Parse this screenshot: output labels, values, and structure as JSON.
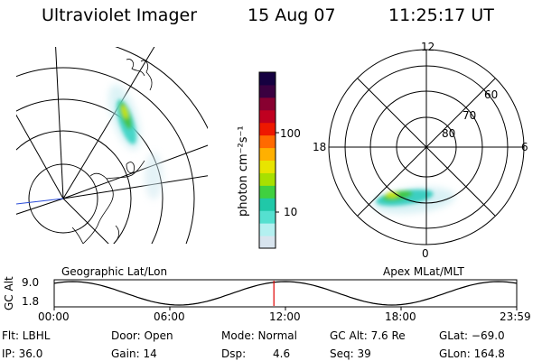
{
  "header": {
    "instrument": "Ultraviolet Imager",
    "date": "15 Aug 07",
    "time": "11:25:17 UT"
  },
  "left_panel": {
    "caption": "Geographic Lat/Lon"
  },
  "right_panel": {
    "caption": "Apex MLat/MLT",
    "mlt_labels": [
      "12",
      "18",
      "6",
      "0"
    ],
    "lat_labels": [
      "60",
      "70",
      "80"
    ]
  },
  "colorbar": {
    "unit_label": "photon cm⁻²s⁻¹",
    "ticks": [
      "100",
      "10"
    ],
    "colors": [
      "#d8e4ee",
      "#b4f0f0",
      "#55e0d0",
      "#20c8a8",
      "#40d040",
      "#a8e000",
      "#e8e400",
      "#ffb000",
      "#ff6a00",
      "#ee1800",
      "#c00020",
      "#880030",
      "#3a0040",
      "#150040"
    ]
  },
  "timeline": {
    "axis_label": "GC Alt",
    "y_ticks": [
      "9.0",
      "1.8"
    ],
    "x_ticks": [
      "00:00",
      "06:00",
      "12:00",
      "18:00",
      "23:59"
    ],
    "current_time_fraction": 0.475,
    "marker_color": "#e00000"
  },
  "info": {
    "filter": "Flt: LBHL",
    "ip": "IP: 36.0",
    "door": "Door: Open",
    "gain": "Gain: 14",
    "mode": "Mode: Normal",
    "dsp_label": "Dsp:",
    "dsp_value": "4.6",
    "gc_alt": "GC Alt: 7.6 Re",
    "seq": "Seq: 39",
    "glat": "GLat: −69.0",
    "glon": "GLon: 164.8"
  }
}
